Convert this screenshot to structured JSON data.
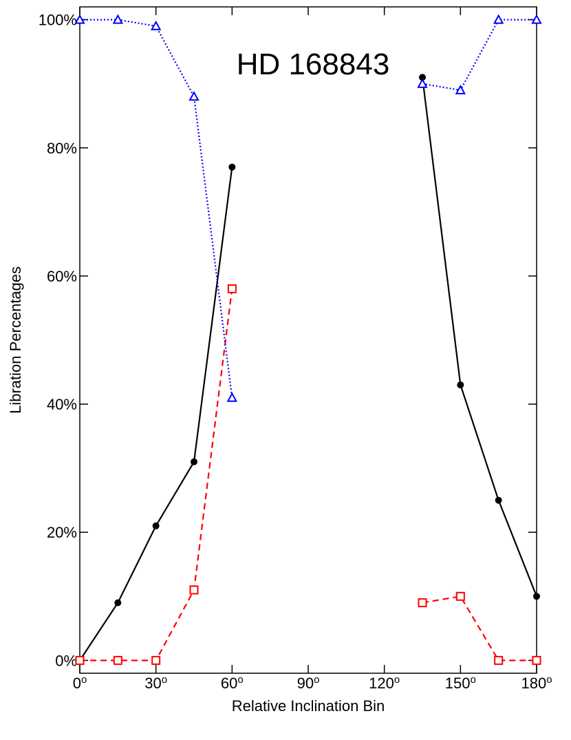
{
  "chart_data": {
    "type": "line",
    "title": "HD 168843",
    "xlabel": "Relative Inclination Bin",
    "ylabel": "Libration Percentages",
    "xlim": [
      0,
      180
    ],
    "ylim": [
      -2,
      102
    ],
    "xticks": [
      0,
      30,
      60,
      90,
      120,
      150,
      180
    ],
    "xtick_labels": [
      "0",
      "30",
      "60",
      "90",
      "120",
      "150",
      "180"
    ],
    "xtick_suffix": "o",
    "yticks": [
      0,
      20,
      40,
      60,
      80,
      100
    ],
    "ytick_labels": [
      "0%",
      "20%",
      "40%",
      "60%",
      "80%",
      "100%"
    ],
    "grid": false,
    "legend": "none",
    "series": [
      {
        "marker": "circle",
        "line_style": "solid",
        "color": "#000000",
        "segments": [
          {
            "x": [
              0,
              15,
              30,
              45,
              60
            ],
            "y": [
              0,
              9,
              21,
              31,
              77
            ]
          },
          {
            "x": [
              135,
              150,
              165,
              180
            ],
            "y": [
              91,
              43,
              25,
              10
            ]
          }
        ]
      },
      {
        "marker": "square",
        "line_style": "dashed",
        "color": "#ff0000",
        "segments": [
          {
            "x": [
              0,
              15,
              30,
              45,
              60
            ],
            "y": [
              0,
              0,
              0,
              11,
              58
            ]
          },
          {
            "x": [
              135,
              150,
              165,
              180
            ],
            "y": [
              9,
              10,
              0,
              0
            ]
          }
        ]
      },
      {
        "marker": "triangle",
        "line_style": "dotted",
        "color": "#0000ff",
        "segments": [
          {
            "x": [
              0,
              15,
              30,
              45,
              60
            ],
            "y": [
              100,
              100,
              99,
              88,
              41
            ]
          },
          {
            "x": [
              135,
              150,
              165,
              180
            ],
            "y": [
              90,
              89,
              100,
              100
            ]
          }
        ]
      }
    ]
  }
}
